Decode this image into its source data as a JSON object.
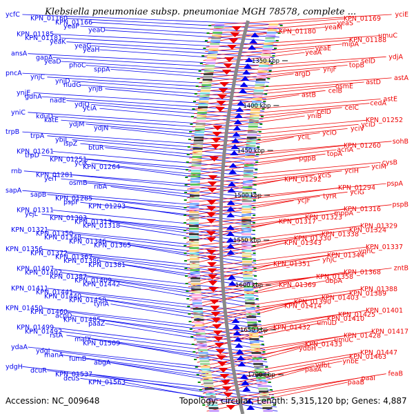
{
  "title": "Klebsiella pneumoniae subsp. pneumoniae MGH 78578, complete ...",
  "footer": {
    "accession": "Accession: NC_009648",
    "summary": "Topology: circular; Length: 5,315,120 bp; Genes: 4,887"
  },
  "colors": {
    "left_strand": "#0000ee",
    "right_strand": "#ee0000",
    "backbone": "#888888",
    "tick": "#008800"
  },
  "ruler": [
    "1350 kbp",
    "1400 kbp",
    "1450 kbp",
    "1500 kbp",
    "1550 kbp",
    "1600 kbp",
    "1650 kbp",
    "1700 kbp"
  ],
  "left_labels": [
    "ycfC",
    "KPN_01160",
    "KPN_01166",
    "yeaP",
    "yeaO",
    "KPN_01185",
    "KPN_01181",
    "yeaK",
    "yeaG",
    "yeaH",
    "ansA",
    "gapA",
    "yeaD",
    "phoC",
    "sppA",
    "pncA",
    "ynjC",
    "ynjD",
    "nudG",
    "ynjB",
    "ynjE",
    "gdhA",
    "nadE",
    "ydjQ",
    "yciA",
    "yniC",
    "kduD",
    "katE",
    "ydjM",
    "ydjN",
    "trpB",
    "trpA",
    "ybiL",
    "ispZ",
    "btuR",
    "KPN_01261",
    "trpD",
    "KPN_01251",
    "yciK",
    "KPN_01264",
    "rnb",
    "KPN_01281",
    "yciT",
    "osmB",
    "ribA",
    "sapA",
    "sapB",
    "KPN_01285",
    "pspF",
    "KPN_01293",
    "KPN_01311",
    "ycjL",
    "KPN_01303",
    "KPN_01313",
    "KPN_01318",
    "KPN_01321",
    "KPN_01350",
    "KPN_01348",
    "KPN_01346",
    "KPN_01365",
    "KPN_01356",
    "KPN_01372",
    "KPN_01367",
    "KPN_01386",
    "KPN_01381",
    "KPN_01407",
    "KPN_01402",
    "KPN_01387",
    "KPN_01409",
    "KPN_01442",
    "KPN_01411",
    "KPN_01441",
    "KPN_01440",
    "KPN_01458",
    "tynA",
    "KPN_01450",
    "KPN_01460",
    "acpD",
    "KPN_01485",
    "paaZ",
    "KPN_01499",
    "KPN_01492",
    "rstA",
    "malX",
    "KPN_01509",
    "ydaA",
    "ydgI",
    "manA",
    "fumB",
    "abgA",
    "ydgH",
    "dcuR",
    "KPN_01537",
    "dcuS",
    "KPN_01563"
  ],
  "right_labels": [
    "yciE",
    "KPN_01169",
    "yeaS",
    "yeaM",
    "KPN_01180",
    "umuC",
    "KPN_01188",
    "mipA",
    "yeaE",
    "yeaA",
    "ydjA",
    "selD",
    "topB",
    "ynjF",
    "argD",
    "astA",
    "astD",
    "osmE",
    "celB",
    "astB",
    "astE",
    "cedA",
    "celC",
    "celD",
    "yniB",
    "KPN_01252",
    "yciD",
    "yciV",
    "yciO",
    "yciL",
    "sohB",
    "KPN_01260",
    "acnA",
    "topA",
    "pgpB",
    "cysB",
    "yciM",
    "yciH",
    "yciS",
    "KPN_01292",
    "pspA",
    "KPN_01294",
    "yciG",
    "tyrR",
    "ycjF",
    "pspB",
    "KPN_01316",
    "mppA",
    "KPN_01323",
    "KPN_01317",
    "KPN_01329",
    "KPN_01324",
    "KPN_01338",
    "KPN_01330",
    "KPN_01343",
    "KPN_01337",
    "yqhC",
    "KPN_01344",
    "yhjC",
    "KPN_01351",
    "zntB",
    "KPN_01368",
    "KPN_01358",
    "dbpA",
    "KPN_01369",
    "KPN_01388",
    "KPN_01389",
    "KPN_01403",
    "KPN_01390",
    "KPN_01414",
    "KPN_01401",
    "KPN_01425",
    "KPN_01410",
    "umuD",
    "KPN_01432",
    "KPN_01417",
    "KPN_01428",
    "umuC",
    "KPN_01433",
    "ydbH",
    "KPN_01447",
    "KPN_01463",
    "ynbE",
    "ydbL",
    "paaA",
    "feaB",
    "paaI",
    "paaB"
  ]
}
